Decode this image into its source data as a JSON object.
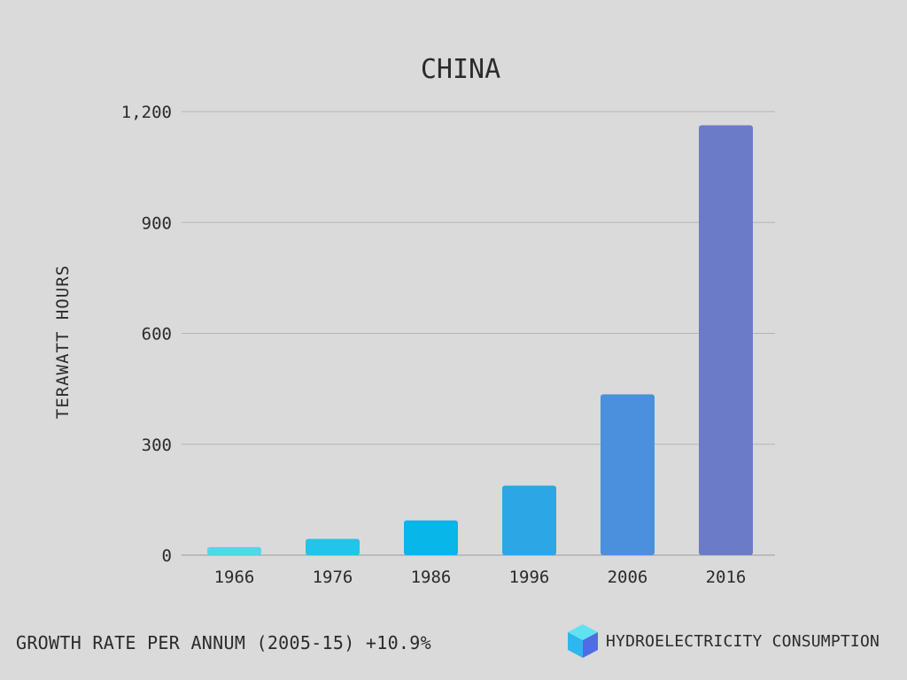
{
  "chart_data": {
    "type": "bar",
    "title": "CHINA",
    "xlabel": "",
    "ylabel": "TERAWATT HOURS",
    "categories": [
      "1966",
      "1976",
      "1986",
      "1996",
      "2006",
      "2016"
    ],
    "values": [
      22,
      44,
      94,
      188,
      435,
      1163
    ],
    "ylim": [
      0,
      1200
    ],
    "yticks": [
      0,
      300,
      600,
      900,
      1200
    ],
    "ytick_labels": [
      "0",
      "300",
      "600",
      "900",
      "1,200"
    ],
    "grid": true,
    "colors": [
      "#4dd9e8",
      "#22c4e9",
      "#08b6e9",
      "#2ca6e4",
      "#4b90dc",
      "#6b7bc8"
    ]
  },
  "footer": {
    "growth_text": "GROWTH RATE PER ANNUM (2005-15) +10.9%",
    "legend_label": "HYDROELECTRICITY CONSUMPTION"
  },
  "icon": {
    "name": "cube-icon",
    "colors": [
      "#5fe3f0",
      "#2fb6ee",
      "#4f6be6"
    ]
  }
}
